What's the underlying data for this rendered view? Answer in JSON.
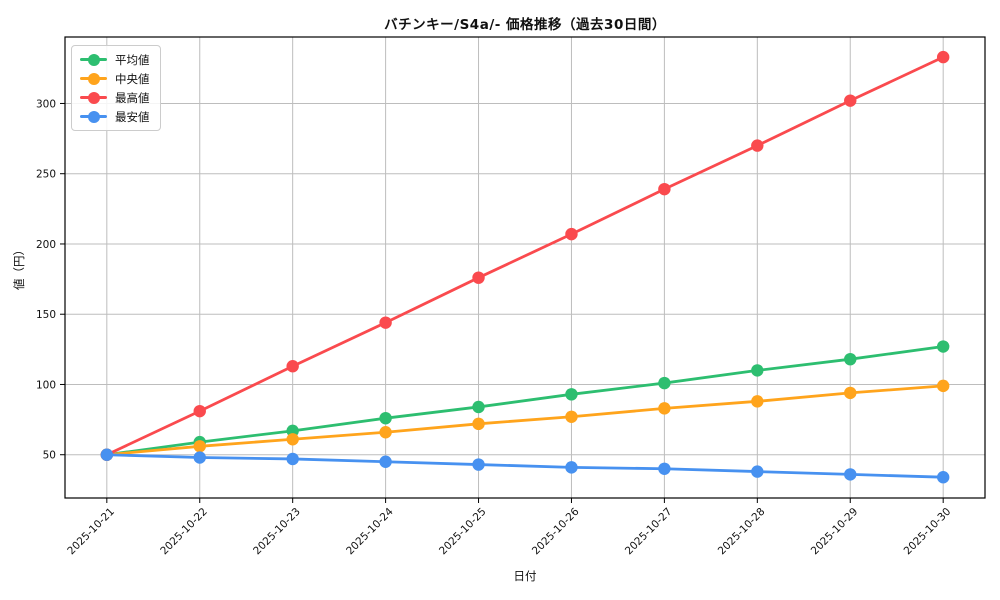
{
  "chart_data": {
    "type": "line",
    "title": "バチンキー/S4a/- 価格推移（過去30日間）",
    "xlabel": "日付",
    "ylabel": "値（円）",
    "categories": [
      "2025-10-21",
      "2025-10-22",
      "2025-10-23",
      "2025-10-24",
      "2025-10-25",
      "2025-10-26",
      "2025-10-27",
      "2025-10-28",
      "2025-10-29",
      "2025-10-30"
    ],
    "series": [
      {
        "name": "平均値",
        "color": "#2dbe70",
        "values": [
          50,
          59,
          67,
          76,
          84,
          93,
          101,
          110,
          118,
          127
        ]
      },
      {
        "name": "中央値",
        "color": "#ffa41c",
        "values": [
          50,
          56,
          61,
          66,
          72,
          77,
          83,
          88,
          94,
          99
        ]
      },
      {
        "name": "最高値",
        "color": "#fa4a4e",
        "values": [
          50,
          81,
          113,
          144,
          176,
          207,
          239,
          270,
          302,
          333
        ]
      },
      {
        "name": "最安値",
        "color": "#4791f0",
        "values": [
          50,
          48,
          47,
          45,
          43,
          41,
          40,
          38,
          36,
          34
        ]
      }
    ],
    "yticks": [
      50,
      100,
      150,
      200,
      250,
      300
    ],
    "ylim": [
      19.2,
      347.3
    ],
    "x_tick_rotation": -45,
    "grid": true,
    "legend_position": "upper-left",
    "colors": {
      "grid": "#bdbdbd",
      "axis": "#000000",
      "text": "#111111",
      "background": "#ffffff"
    }
  }
}
